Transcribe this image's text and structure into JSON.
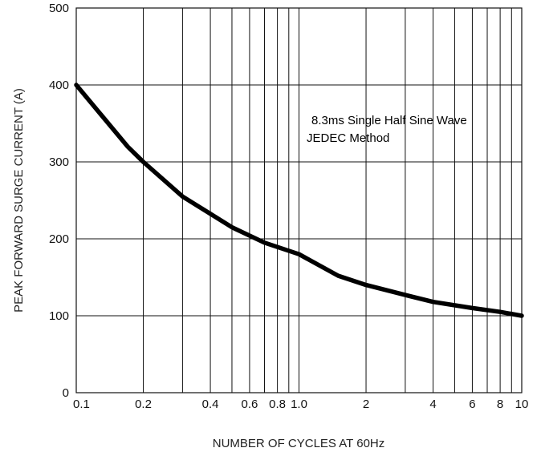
{
  "chart_data": {
    "type": "line",
    "x_scale": "log",
    "xlim": [
      0.1,
      10
    ],
    "ylim": [
      0,
      500
    ],
    "xlabel": "NUMBER OF CYCLES AT 60Hz",
    "ylabel": "PEAK FORWARD SURGE CURRENT (A)",
    "grid": true,
    "x_gridlines": [
      0.2,
      0.3,
      0.4,
      0.5,
      0.6,
      0.7,
      0.8,
      0.9,
      1.0,
      2,
      3,
      4,
      5,
      6,
      7,
      8,
      9
    ],
    "y_gridlines": [
      100,
      200,
      300,
      400
    ],
    "x_ticks": [
      {
        "value": 0.1,
        "label": "0.1"
      },
      {
        "value": 0.2,
        "label": "0.2"
      },
      {
        "value": 0.4,
        "label": "0.4"
      },
      {
        "value": 0.6,
        "label": "0.6"
      },
      {
        "value": 0.8,
        "label": "0.8"
      },
      {
        "value": 1.0,
        "label": "1.0"
      },
      {
        "value": 2,
        "label": "2"
      },
      {
        "value": 4,
        "label": "4"
      },
      {
        "value": 6,
        "label": "6"
      },
      {
        "value": 8,
        "label": "8"
      },
      {
        "value": 10,
        "label": "10"
      }
    ],
    "y_ticks": [
      {
        "value": 0,
        "label": "0"
      },
      {
        "value": 100,
        "label": "100"
      },
      {
        "value": 200,
        "label": "200"
      },
      {
        "value": 300,
        "label": "300"
      },
      {
        "value": 400,
        "label": "400"
      },
      {
        "value": 500,
        "label": "500"
      }
    ],
    "annotations": [
      "8.3ms Single Half Sine Wave",
      "JEDEC  Method"
    ],
    "series": [
      {
        "color": "#000000",
        "x": [
          0.1,
          0.17,
          0.2,
          0.3,
          0.5,
          0.7,
          1.0,
          1.5,
          2.0,
          3.0,
          4.0,
          6.0,
          8.0,
          10.0
        ],
        "y": [
          400,
          320,
          300,
          255,
          215,
          195,
          180,
          152,
          140,
          127,
          118,
          110,
          105,
          100
        ]
      }
    ]
  }
}
